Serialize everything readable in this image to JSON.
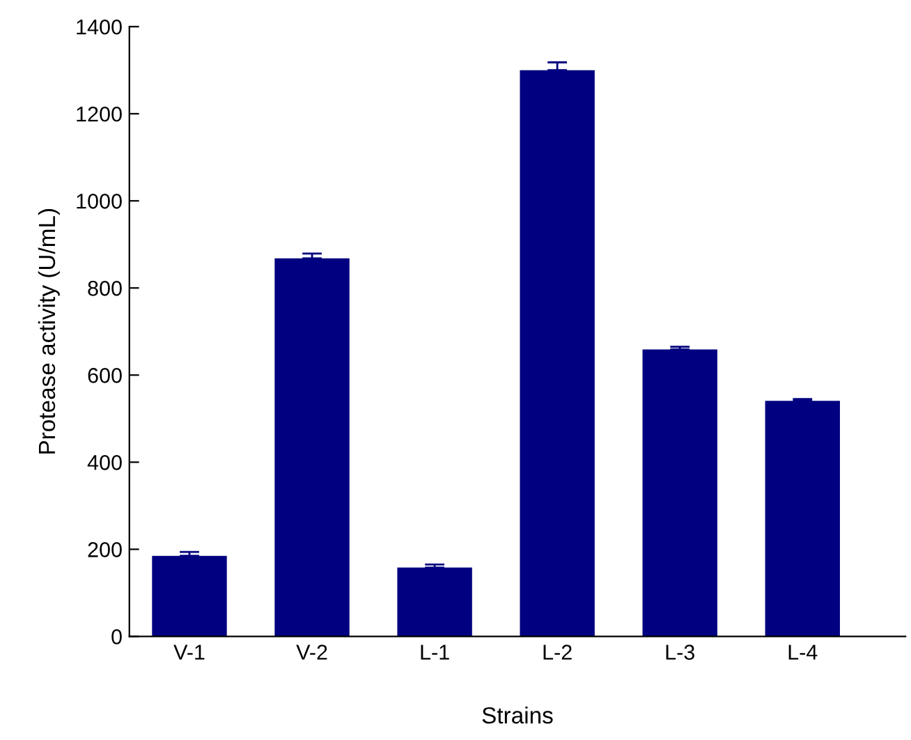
{
  "chart_data": {
    "type": "bar",
    "xlabel": "Strains",
    "ylabel": "Protease activity (U/mL)",
    "categories": [
      "V-1",
      "V-2",
      "L-1",
      "L-2",
      "L-3",
      "L-4"
    ],
    "values": [
      185,
      868,
      158,
      1300,
      659,
      541
    ],
    "errors": [
      9,
      11,
      7,
      18,
      6,
      4
    ],
    "color": "#000080",
    "ylim": [
      0,
      1400
    ],
    "yticks": [
      0,
      200,
      400,
      600,
      800,
      1000,
      1200,
      1400
    ],
    "grid": false,
    "legend": false
  }
}
